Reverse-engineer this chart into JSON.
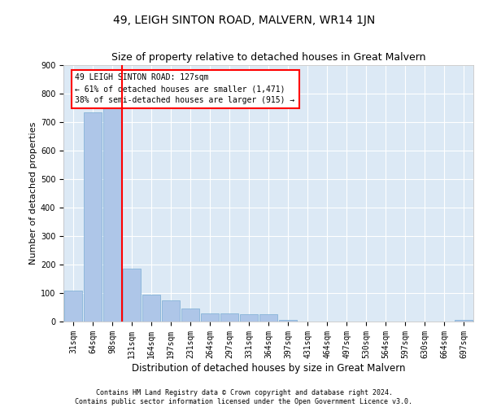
{
  "title": "49, LEIGH SINTON ROAD, MALVERN, WR14 1JN",
  "subtitle": "Size of property relative to detached houses in Great Malvern",
  "xlabel": "Distribution of detached houses by size in Great Malvern",
  "ylabel": "Number of detached properties",
  "categories": [
    "31sqm",
    "64sqm",
    "98sqm",
    "131sqm",
    "164sqm",
    "197sqm",
    "231sqm",
    "264sqm",
    "297sqm",
    "331sqm",
    "364sqm",
    "397sqm",
    "431sqm",
    "464sqm",
    "497sqm",
    "530sqm",
    "564sqm",
    "597sqm",
    "630sqm",
    "664sqm",
    "697sqm"
  ],
  "values": [
    110,
    735,
    755,
    185,
    95,
    75,
    45,
    30,
    28,
    25,
    25,
    5,
    0,
    0,
    0,
    0,
    0,
    0,
    0,
    0,
    5
  ],
  "bar_color": "#aec6e8",
  "bar_edgecolor": "#7aadd4",
  "vline_color": "red",
  "vline_xindex": 2.5,
  "annotation_text": "49 LEIGH SINTON ROAD: 127sqm\n← 61% of detached houses are smaller (1,471)\n38% of semi-detached houses are larger (915) →",
  "annotation_box_edgecolor": "red",
  "annotation_fontsize": 7,
  "title_fontsize": 10,
  "subtitle_fontsize": 9,
  "xlabel_fontsize": 8.5,
  "ylabel_fontsize": 8,
  "tick_fontsize": 7,
  "ylim_max": 900,
  "yticks": [
    0,
    100,
    200,
    300,
    400,
    500,
    600,
    700,
    800,
    900
  ],
  "footer_line1": "Contains HM Land Registry data © Crown copyright and database right 2024.",
  "footer_line2": "Contains public sector information licensed under the Open Government Licence v3.0.",
  "plot_bg_color": "#dce9f5",
  "grid_color": "white"
}
